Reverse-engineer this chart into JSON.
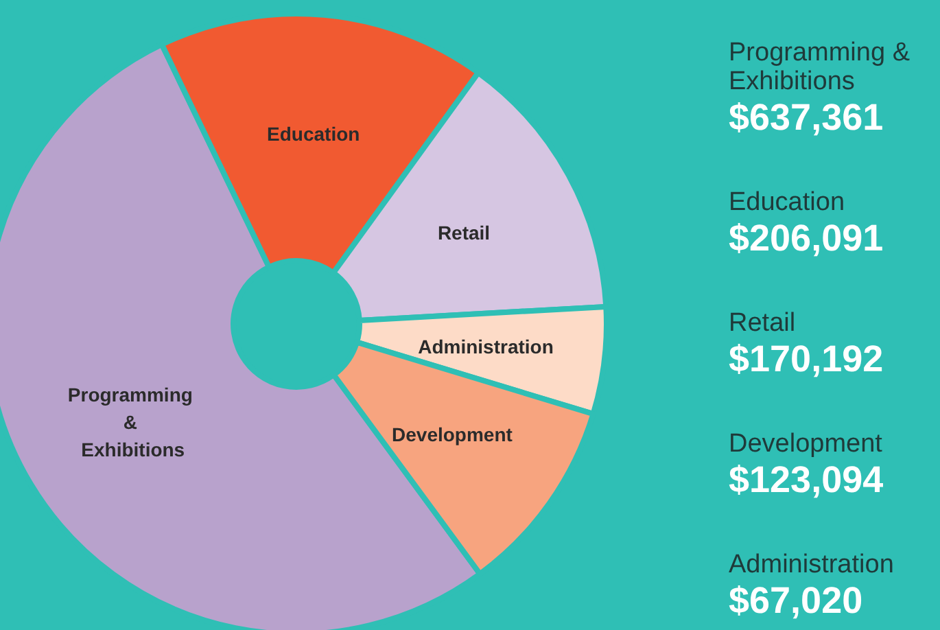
{
  "chart_data": {
    "type": "donut",
    "categories": [
      "Programming & Exhibitions",
      "Education",
      "Retail",
      "Administration",
      "Development"
    ],
    "values": [
      52.94,
      17.12,
      14.14,
      5.57,
      10.23
    ],
    "colors": [
      "#b8a2cc",
      "#f15a31",
      "#d6c6e2",
      "#fddbc7",
      "#f7a47f"
    ],
    "annotations": [
      "Programming & Exhibitions",
      "$637,361",
      "Education",
      "$206,091",
      "Retail",
      "$170,192",
      "Development",
      "$123,094",
      "Administration",
      "$67,020"
    ]
  }
}
